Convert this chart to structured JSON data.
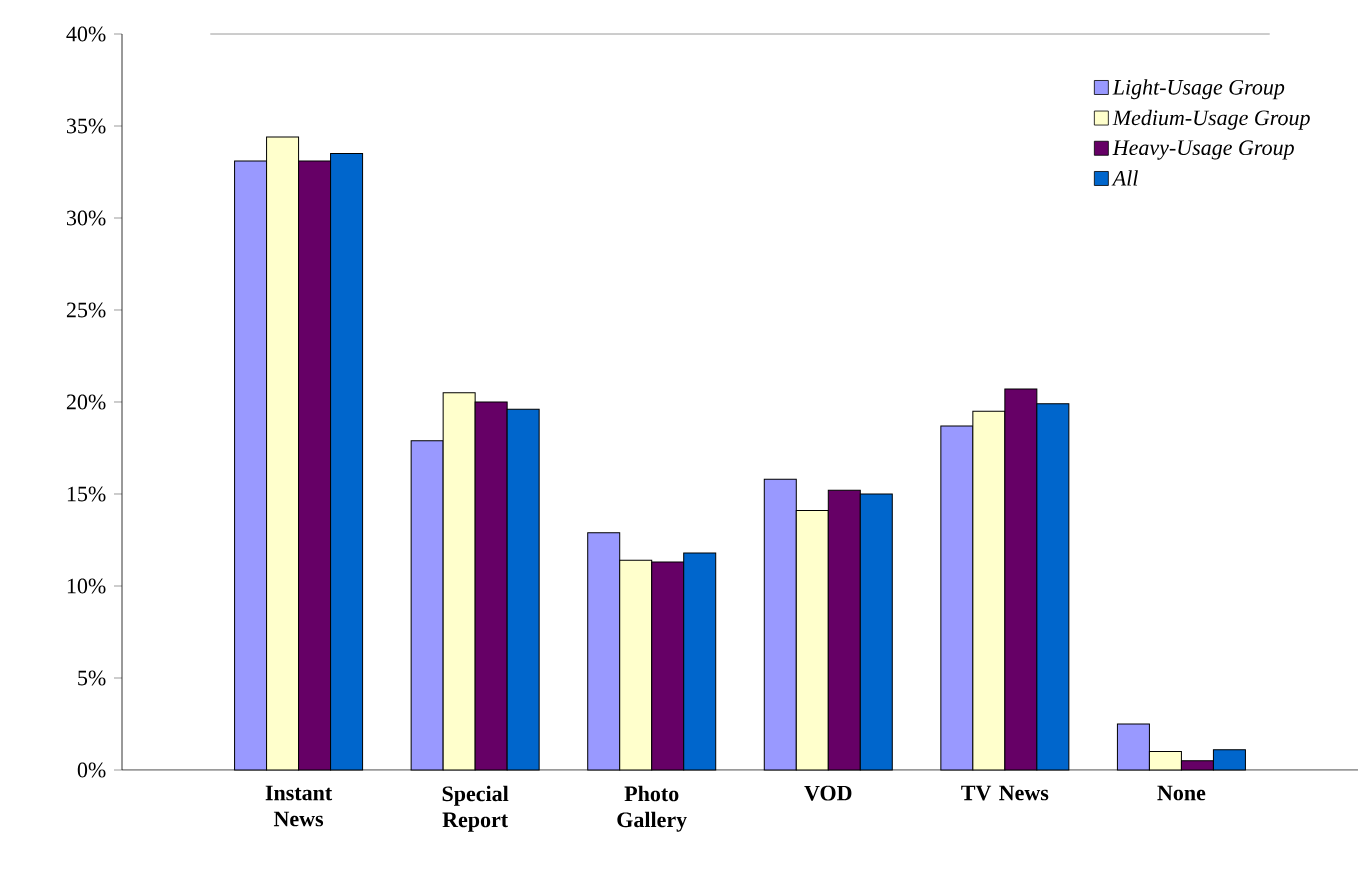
{
  "chart_data": {
    "type": "bar",
    "categories": [
      "Instant News",
      "Special Report",
      "Photo Gallery",
      "VOD",
      "TV News",
      "None"
    ],
    "series": [
      {
        "name": "Light-Usage Group",
        "color": "#9999ff",
        "values": [
          33.1,
          17.9,
          12.9,
          15.8,
          18.7,
          2.5
        ]
      },
      {
        "name": "Medium-Usage Group",
        "color": "#ffffcc",
        "values": [
          34.4,
          20.5,
          11.4,
          14.1,
          19.5,
          1.0
        ]
      },
      {
        "name": "Heavy-Usage Group",
        "color": "#660066",
        "values": [
          33.1,
          20.0,
          11.3,
          15.2,
          20.7,
          0.5
        ]
      },
      {
        "name": "All",
        "color": "#0066cc",
        "values": [
          33.5,
          19.6,
          11.8,
          15.0,
          19.9,
          1.1
        ]
      }
    ],
    "ylim": [
      0,
      40
    ],
    "yticks": [
      {
        "value": 0,
        "label": "0%"
      },
      {
        "value": 5,
        "label": "5%"
      },
      {
        "value": 10,
        "label": "10%"
      },
      {
        "value": 15,
        "label": "15%"
      },
      {
        "value": 20,
        "label": "20%"
      },
      {
        "value": 25,
        "label": "25%"
      },
      {
        "value": 30,
        "label": "30%"
      },
      {
        "value": 35,
        "label": "35%"
      },
      {
        "value": 40,
        "label": "40%"
      }
    ],
    "grid": false,
    "legend": "top right"
  }
}
